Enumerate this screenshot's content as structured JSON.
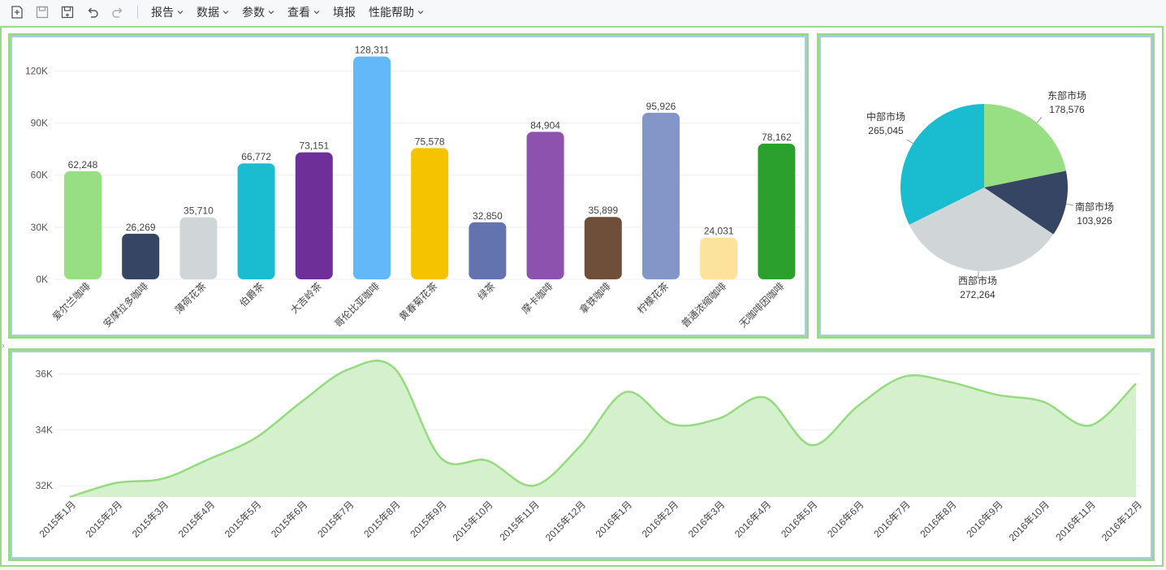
{
  "toolbar": {
    "icons": [
      "new-report-icon",
      "save-icon",
      "save-as-icon",
      "undo-icon",
      "redo-icon"
    ],
    "menus": [
      {
        "label": "报告",
        "has_dropdown": true
      },
      {
        "label": "数据",
        "has_dropdown": true
      },
      {
        "label": "参数",
        "has_dropdown": true
      },
      {
        "label": "查看",
        "has_dropdown": true
      },
      {
        "label": "填报",
        "has_dropdown": false
      },
      {
        "label": "性能帮助",
        "has_dropdown": true
      }
    ]
  },
  "colors": {
    "panel_border": "#99d988",
    "panel_inner_border": "#a9cde6",
    "area_line": "#95db7f",
    "area_fill": "#d5f0cc"
  },
  "chart_data": [
    {
      "type": "bar",
      "categories": [
        "爱尔兰咖啡",
        "安摩拉多咖啡",
        "薄荷花茶",
        "伯爵茶",
        "大吉岭茶",
        "哥伦比亚咖啡",
        "黄春菊花茶",
        "绿茶",
        "摩卡咖啡",
        "拿铁咖啡",
        "柠檬花茶",
        "普通浓缩咖啡",
        "无咖啡因咖啡"
      ],
      "values": [
        62248,
        26269,
        35710,
        66772,
        73151,
        128311,
        75578,
        32850,
        84904,
        35899,
        95926,
        24031,
        78162
      ],
      "data_labels": [
        "62,248",
        "26,269",
        "35,710",
        "66,772",
        "73,151",
        "128,311",
        "75,578",
        "32,850",
        "84,904",
        "35,899",
        "95,926",
        "24,031",
        "78,162"
      ],
      "colors": [
        "#97df82",
        "#374565",
        "#d0d5d8",
        "#1abdd0",
        "#6e2f99",
        "#63b8fa",
        "#f5c300",
        "#6373b0",
        "#8c52ad",
        "#6f4f3a",
        "#8495c8",
        "#fce29b",
        "#2ca02c"
      ],
      "ylim": [
        0,
        130000
      ],
      "yticks": [
        0,
        30000,
        60000,
        90000,
        120000
      ],
      "ytick_labels": [
        "0K",
        "30K",
        "60K",
        "90K",
        "120K"
      ],
      "title": "",
      "xlabel": "",
      "ylabel": "",
      "grid": true
    },
    {
      "type": "pie",
      "labels": [
        "东部市场",
        "南部市场",
        "西部市场",
        "中部市场"
      ],
      "values": [
        178576,
        103926,
        272264,
        265045
      ],
      "value_labels": [
        "178,576",
        "103,926",
        "272,264",
        "265,045"
      ],
      "colors": [
        "#97df82",
        "#374565",
        "#d0d5d8",
        "#1abdd0"
      ],
      "title": ""
    },
    {
      "type": "area",
      "x": [
        "2015年1月",
        "2015年2月",
        "2015年3月",
        "2015年4月",
        "2015年5月",
        "2015年6月",
        "2015年7月",
        "2015年8月",
        "2015年9月",
        "2015年10月",
        "2015年11月",
        "2015年12月",
        "2016年1月",
        "2016年2月",
        "2016年3月",
        "2016年4月",
        "2016年5月",
        "2016年6月",
        "2016年7月",
        "2016年8月",
        "2016年9月",
        "2016年10月",
        "2016年11月",
        "2016年12月"
      ],
      "values": [
        31600,
        32100,
        32250,
        32950,
        33700,
        35000,
        36150,
        36200,
        33000,
        32900,
        32000,
        33400,
        35350,
        34200,
        34400,
        35150,
        33450,
        34850,
        35900,
        35700,
        35250,
        35000,
        34150,
        35650
      ],
      "ylim": [
        31600,
        36300
      ],
      "yticks": [
        32000,
        34000,
        36000
      ],
      "ytick_labels": [
        "32K",
        "34K",
        "36K"
      ],
      "title": "",
      "xlabel": "",
      "ylabel": "",
      "grid": true
    }
  ]
}
